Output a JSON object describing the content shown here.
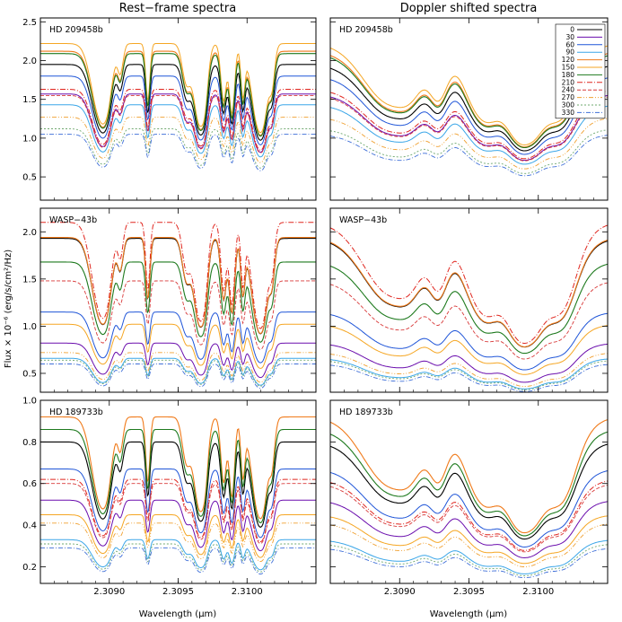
{
  "column_titles": [
    "Rest−frame spectra",
    "Doppler shifted spectra"
  ],
  "y_label": "Flux × 10⁻⁶ (erg/s/cm²/Hz)",
  "x_label": "Wavelength (μm)",
  "phases": [
    "0",
    "30",
    "60",
    "90",
    "120",
    "150",
    "180",
    "210",
    "240",
    "270",
    "300",
    "330"
  ],
  "phase_colors": [
    "#000000",
    "#6a0dad",
    "#1f55d8",
    "#3aa6e8",
    "#f07a1a",
    "#f5a623",
    "#1e7a1e",
    "#e0261f",
    "#d83a3a",
    "#f0a030",
    "#6fa86f",
    "#3f6fd8"
  ],
  "chart_data": [
    {
      "type": "line",
      "panel": "rest",
      "title": "HD 209458b",
      "xlim": [
        2.3085,
        2.3105
      ],
      "ylim": [
        0.2,
        2.55
      ],
      "xticks": [
        "2.3090",
        "2.3095",
        "2.3100"
      ],
      "yticks": [
        "0.5",
        "1.0",
        "1.5",
        "2.0",
        "2.5"
      ],
      "continuum": [
        1.95,
        1.57,
        1.8,
        1.43,
        2.12,
        2.22,
        2.09,
        1.63,
        1.55,
        1.27,
        1.12,
        1.05
      ],
      "legend_position": "top-right"
    },
    {
      "type": "line",
      "panel": "doppler",
      "title": "HD 209458b",
      "xlim": [
        2.3085,
        2.3105
      ],
      "ylim": [
        0.2,
        2.55
      ],
      "xticks": [
        "2.3090",
        "2.3095",
        "2.3100"
      ],
      "yticks": [],
      "continuum": [
        1.95,
        1.57,
        1.8,
        1.43,
        2.12,
        2.22,
        2.09,
        1.63,
        1.55,
        1.27,
        1.12,
        1.05
      ],
      "legend_position": "top-right"
    },
    {
      "type": "line",
      "panel": "rest",
      "title": "WASP−43b",
      "xlim": [
        2.3085,
        2.3105
      ],
      "ylim": [
        0.3,
        2.25
      ],
      "xticks": [
        "2.3090",
        "2.3095",
        "2.3100"
      ],
      "yticks": [
        "0.5",
        "1.0",
        "1.5",
        "2.0"
      ],
      "continuum": [
        1.93,
        0.82,
        1.15,
        0.66,
        1.94,
        1.02,
        1.68,
        2.1,
        1.48,
        0.72,
        0.64,
        0.6
      ]
    },
    {
      "type": "line",
      "panel": "doppler",
      "title": "WASP−43b",
      "xlim": [
        2.3085,
        2.3105
      ],
      "ylim": [
        0.3,
        2.25
      ],
      "xticks": [
        "2.3090",
        "2.3095",
        "2.3100"
      ],
      "yticks": [],
      "continuum": [
        1.93,
        0.82,
        1.15,
        0.66,
        1.94,
        1.02,
        1.68,
        2.1,
        1.48,
        0.72,
        0.64,
        0.6
      ]
    },
    {
      "type": "line",
      "panel": "rest",
      "title": "HD 189733b",
      "xlim": [
        2.3085,
        2.3105
      ],
      "ylim": [
        0.12,
        1.0
      ],
      "xticks": [
        "2.3090",
        "2.3095",
        "2.3100"
      ],
      "yticks": [
        "0.2",
        "0.4",
        "0.6",
        "0.8",
        "1.0"
      ],
      "continuum": [
        0.8,
        0.52,
        0.67,
        0.33,
        0.92,
        0.45,
        0.86,
        0.62,
        0.6,
        0.41,
        0.31,
        0.29
      ]
    },
    {
      "type": "line",
      "panel": "doppler",
      "title": "HD 189733b",
      "xlim": [
        2.3085,
        2.3105
      ],
      "ylim": [
        0.12,
        1.0
      ],
      "xticks": [
        "2.3090",
        "2.3095",
        "2.3100"
      ],
      "yticks": [],
      "continuum": [
        0.8,
        0.52,
        0.67,
        0.33,
        0.92,
        0.45,
        0.86,
        0.62,
        0.6,
        0.41,
        0.31,
        0.29
      ]
    }
  ]
}
